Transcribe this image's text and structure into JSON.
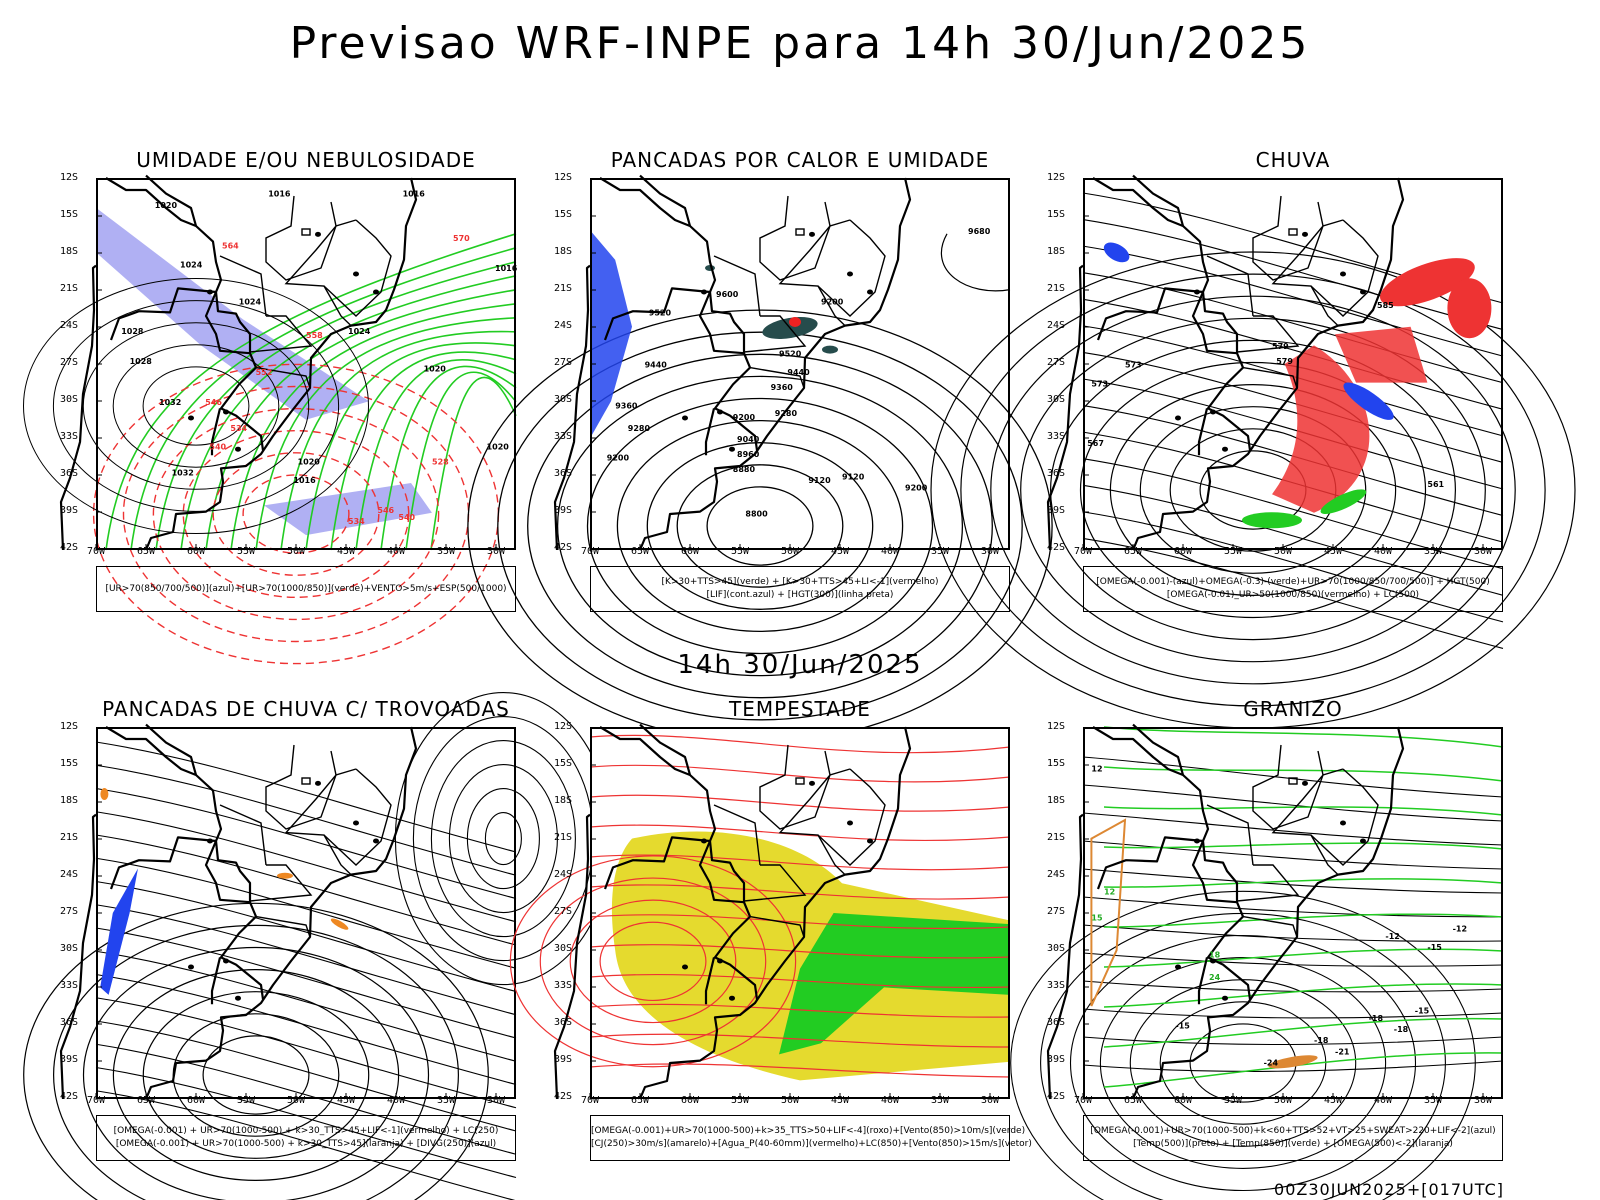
{
  "header": {
    "title": "Previsao WRF-INPE  para 14h 30/Jun/2025",
    "subtitle": "14h 30/Jun/2025",
    "footer": "00Z30JUN2025+[017UTC]"
  },
  "axes": {
    "lat_labels": [
      "12S",
      "15S",
      "18S",
      "21S",
      "24S",
      "27S",
      "30S",
      "33S",
      "36S",
      "39S",
      "42S"
    ],
    "lon_labels": [
      "70W",
      "65W",
      "60W",
      "55W",
      "50W",
      "45W",
      "40W",
      "35W",
      "30W"
    ]
  },
  "panels": [
    {
      "title": "UMIDADE E/OU NEBULOSIDADE",
      "legend": [
        "[UR>70(850/700/500)](azul)+[UR>70(1000/850)](verde)+VENTO>5m/s+ESP(500/1000)"
      ],
      "colors": {
        "blue": "#9c9cf0",
        "green": "#22cc22",
        "red": "#ee3333"
      },
      "labels": [
        "1020",
        "1016",
        "1024",
        "1028",
        "1032",
        "1016",
        "1024",
        "1028",
        "1032",
        "1020",
        "1016",
        "1020",
        "1024",
        "1016",
        "1020",
        "570",
        "564",
        "558",
        "552",
        "546",
        "540",
        "534",
        "528",
        "546",
        "540",
        "534"
      ]
    },
    {
      "title": "PANCADAS POR CALOR E UMIDADE",
      "legend": [
        "[K>30+TTS>45](verde) + [K>30+TTS>45+LI<-1](vermelho)",
        "[LIF](cont.azul) + [HGT(300)](linha preta)"
      ],
      "colors": {
        "blue": "#2244ee",
        "dark": "#264c4c",
        "red": "#ee2222"
      },
      "labels": [
        "9680",
        "9600",
        "9520",
        "9520",
        "9440",
        "9360",
        "9280",
        "9200",
        "9200",
        "9440",
        "9360",
        "9280",
        "9200",
        "9120",
        "9040",
        "8960",
        "8880",
        "9120",
        "9200",
        "8800"
      ]
    },
    {
      "title": "CHUVA",
      "legend": [
        "[OMEGA(-0.001)-(azul)+OMEGA(-0.3)-(verde)+UR>70(1000/850/700/500)] + HGT(500)",
        "[OMEGA(-0.01)_UR>50(1000/850)(vermelho) + LC(500)"
      ],
      "colors": {
        "red": "#ee3333",
        "blue": "#2244ee",
        "green": "#22cc22"
      },
      "labels": [
        "585",
        "579",
        "573",
        "567",
        "573",
        "579",
        "561"
      ]
    },
    {
      "title": "PANCADAS DE CHUVA C/ TROVOADAS",
      "legend": [
        "[OMEGA(-0.001) + UR>70(1000-500) + k>30_TTS>45+LIF<-1](vermelho) + LC(250)",
        "[OMEGA(-0.001) + UR>70(1000-500) + k>30_TTS>45](laranja) + [DIVG(250)](azul)"
      ],
      "colors": {
        "blue": "#2244ee",
        "orange": "#ee8822"
      }
    },
    {
      "title": "TEMPESTADE",
      "legend": [
        "[OMEGA(-0.001)+UR>70(1000-500)+k>35_TTS>50+LIF<-4](roxo)+[Vento(850)>10m/s](verde)",
        "[CJ(250)>30m/s](amarelo)+[Agua_P(40-60mm)](vermelho)+LC(850)+[Vento(850)>15m/s](vetor)"
      ],
      "colors": {
        "yellow": "#e5da2e",
        "green": "#22cc22",
        "red": "#ee3333"
      }
    },
    {
      "title": "GRANIZO",
      "legend": [
        "[OMEGA(-0.001)+UR>70(1000-500)+k<60+TTS>52+VT>25+SWEAT>220+LIF<-2](azul)",
        "[Temp(500)](preto) + [Temp(850)](verde) + [OMEGA(500)<-2](laranja)"
      ],
      "colors": {
        "green": "#22cc22",
        "orange": "#dd8833"
      },
      "labels": [
        "12",
        "-12",
        "-15",
        "-18",
        "-21",
        "-24",
        "-18",
        "-15",
        "-12",
        "18",
        "15",
        "12",
        "24",
        "-15",
        "-18"
      ]
    }
  ]
}
